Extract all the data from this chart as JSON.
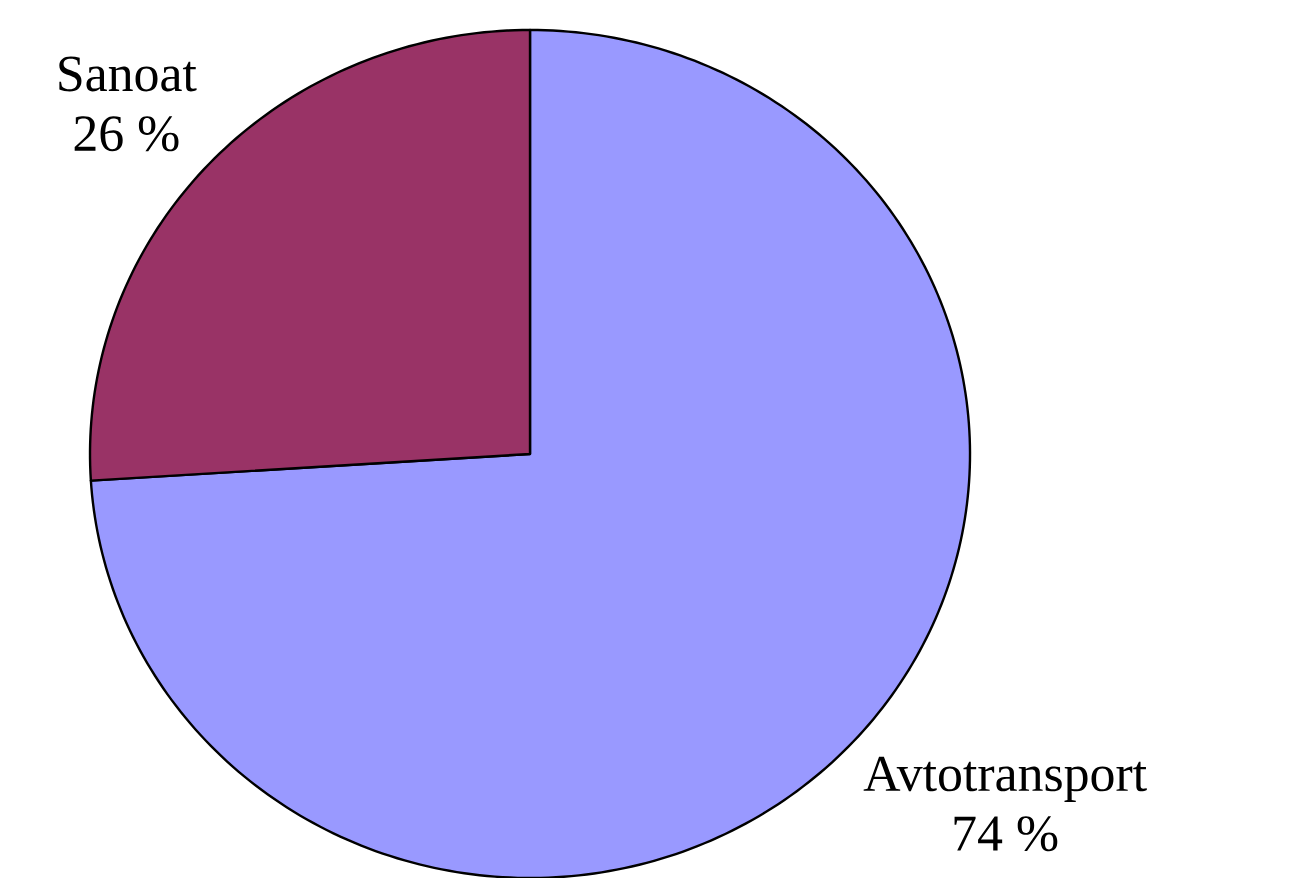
{
  "chart_data": {
    "type": "pie",
    "categories": [
      "Avtotransport",
      "Sanoat"
    ],
    "values": [
      74,
      26
    ],
    "colors": [
      "#9999ff",
      "#993366"
    ],
    "value_labels": [
      "74 %",
      "26 %"
    ]
  }
}
